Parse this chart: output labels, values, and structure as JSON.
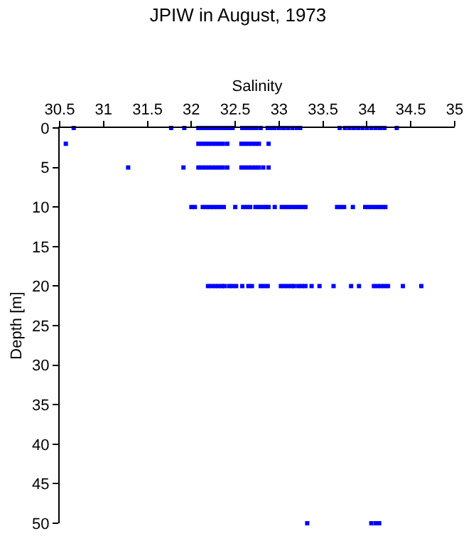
{
  "chart_data": {
    "type": "scatter",
    "title": "JPIW in August, 1973",
    "xlabel": "Salinity",
    "ylabel": "Depth [m]",
    "xlim": [
      30.5,
      35
    ],
    "xticks": [
      30.5,
      31,
      31.5,
      32,
      32.5,
      33,
      33.5,
      34,
      34.5,
      35
    ],
    "ylim": [
      50,
      0
    ],
    "yticks": [
      0,
      5,
      10,
      15,
      20,
      25,
      30,
      35,
      40,
      45,
      50
    ],
    "marker": "square",
    "series": [
      {
        "color": "#0000ff",
        "x": [
          30.66,
          31.77,
          31.92,
          32.08,
          32.12,
          32.16,
          32.2,
          32.24,
          32.28,
          32.32,
          32.36,
          32.4,
          32.44,
          32.47,
          32.58,
          32.62,
          32.66,
          32.7,
          32.74,
          32.79,
          32.87,
          32.91,
          32.95,
          33.0,
          33.05,
          33.1,
          33.15,
          33.2,
          33.24,
          33.69,
          33.75,
          33.8,
          33.85,
          33.9,
          33.95,
          34.0,
          34.05,
          34.1,
          34.15,
          34.2,
          34.34,
          30.57,
          32.08,
          32.12,
          32.16,
          32.2,
          32.24,
          32.28,
          32.32,
          32.36,
          32.41,
          32.57,
          32.61,
          32.65,
          32.69,
          32.73,
          32.77,
          32.88,
          31.28,
          31.91,
          32.08,
          32.12,
          32.16,
          32.2,
          32.24,
          32.28,
          32.32,
          32.36,
          32.41,
          32.57,
          32.61,
          32.65,
          32.69,
          32.73,
          32.77,
          32.82,
          32.88,
          32.0,
          32.04,
          32.13,
          32.17,
          32.21,
          32.25,
          32.29,
          32.33,
          32.37,
          32.5,
          32.59,
          32.63,
          32.67,
          32.73,
          32.77,
          32.81,
          32.85,
          32.88,
          32.95,
          33.03,
          33.07,
          33.11,
          33.15,
          33.19,
          33.23,
          33.27,
          33.3,
          33.66,
          33.7,
          33.74,
          33.84,
          33.98,
          34.02,
          34.06,
          34.1,
          34.14,
          34.18,
          34.21,
          32.19,
          32.23,
          32.27,
          32.31,
          32.35,
          32.38,
          32.43,
          32.47,
          32.51,
          32.58,
          32.65,
          32.69,
          32.79,
          32.83,
          32.87,
          33.02,
          33.06,
          33.1,
          33.14,
          33.17,
          33.22,
          33.26,
          33.3,
          33.37,
          33.46,
          33.62,
          33.82,
          33.91,
          34.08,
          34.12,
          34.16,
          34.2,
          34.24,
          34.41,
          34.62,
          33.32,
          34.05,
          34.1,
          34.14
        ],
        "values": [
          0,
          0,
          0,
          0,
          0,
          0,
          0,
          0,
          0,
          0,
          0,
          0,
          0,
          0,
          0,
          0,
          0,
          0,
          0,
          0,
          0,
          0,
          0,
          0,
          0,
          0,
          0,
          0,
          0,
          0,
          0,
          0,
          0,
          0,
          0,
          0,
          0,
          0,
          0,
          0,
          0,
          2,
          2,
          2,
          2,
          2,
          2,
          2,
          2,
          2,
          2,
          2,
          2,
          2,
          2,
          2,
          2,
          2,
          5,
          5,
          5,
          5,
          5,
          5,
          5,
          5,
          5,
          5,
          5,
          5,
          5,
          5,
          5,
          5,
          5,
          5,
          5,
          10,
          10,
          10,
          10,
          10,
          10,
          10,
          10,
          10,
          10,
          10,
          10,
          10,
          10,
          10,
          10,
          10,
          10,
          10,
          10,
          10,
          10,
          10,
          10,
          10,
          10,
          10,
          10,
          10,
          10,
          10,
          10,
          10,
          10,
          10,
          10,
          10,
          10,
          20,
          20,
          20,
          20,
          20,
          20,
          20,
          20,
          20,
          20,
          20,
          20,
          20,
          20,
          20,
          20,
          20,
          20,
          20,
          20,
          20,
          20,
          20,
          20,
          20,
          20,
          20,
          20,
          20,
          20,
          20,
          20,
          20,
          20,
          20,
          50,
          50,
          50,
          50
        ]
      }
    ]
  }
}
